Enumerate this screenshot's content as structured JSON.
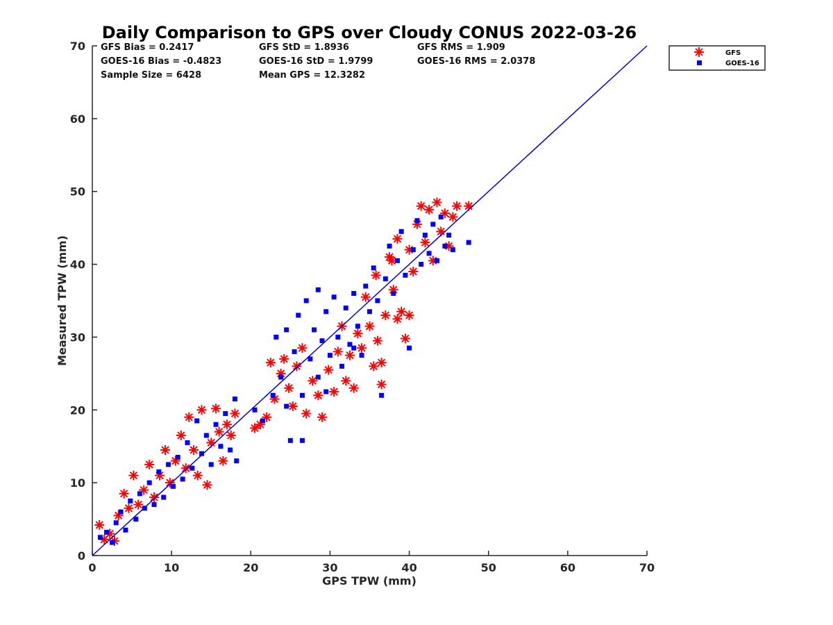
{
  "chart_data": {
    "type": "scatter",
    "title": "Daily Comparison to GPS over Cloudy CONUS 2022-03-26",
    "xlabel": "GPS TPW (mm)",
    "ylabel": "Measured TPW (mm)",
    "xlim": [
      0,
      70
    ],
    "ylim": [
      0,
      70
    ],
    "xticks": [
      "0",
      "10",
      "20",
      "30",
      "40",
      "50",
      "60",
      "70"
    ],
    "yticks": [
      "0",
      "10",
      "20",
      "30",
      "40",
      "50",
      "60",
      "70"
    ],
    "grid": false,
    "legend_position": "outside top-right",
    "stats": [
      [
        "GFS Bias = 0.2417",
        "GFS StD = 1.8936",
        "GFS RMS = 1.909"
      ],
      [
        "GOES-16 Bias = -0.4823",
        "GOES-16 StD = 1.9799",
        "GOES-16 RMS = 2.0378"
      ],
      [
        "Sample Size = 6428",
        "Mean GPS = 12.3282",
        ""
      ]
    ],
    "reference_line": {
      "x": [
        0,
        70
      ],
      "y": [
        0,
        70
      ],
      "color": "#0000dd"
    },
    "series": [
      {
        "name": "GFS",
        "marker": "asterisk",
        "color": "#ff0000",
        "points": [
          [
            0.9,
            4.2
          ],
          [
            1.5,
            2.2
          ],
          [
            2.2,
            3.0
          ],
          [
            2.8,
            2.0
          ],
          [
            3.3,
            5.5
          ],
          [
            4.0,
            8.5
          ],
          [
            4.6,
            6.5
          ],
          [
            5.2,
            11.0
          ],
          [
            5.8,
            7.0
          ],
          [
            6.5,
            9.0
          ],
          [
            7.2,
            12.5
          ],
          [
            7.8,
            8.0
          ],
          [
            8.5,
            11.0
          ],
          [
            9.2,
            14.5
          ],
          [
            9.8,
            10.0
          ],
          [
            10.5,
            13.0
          ],
          [
            11.2,
            16.5
          ],
          [
            11.8,
            12.0
          ],
          [
            12.2,
            19.0
          ],
          [
            12.8,
            14.5
          ],
          [
            13.3,
            11.0
          ],
          [
            13.8,
            20.0
          ],
          [
            14.5,
            9.7
          ],
          [
            15.0,
            15.5
          ],
          [
            15.6,
            20.2
          ],
          [
            16.0,
            17.0
          ],
          [
            16.5,
            13.0
          ],
          [
            17.0,
            18.0
          ],
          [
            17.5,
            16.5
          ],
          [
            18.0,
            19.5
          ],
          [
            20.5,
            17.5
          ],
          [
            21.2,
            18.0
          ],
          [
            22.0,
            19.0
          ],
          [
            22.5,
            26.5
          ],
          [
            23.0,
            21.5
          ],
          [
            23.8,
            25.0
          ],
          [
            24.2,
            27.0
          ],
          [
            24.8,
            23.0
          ],
          [
            25.3,
            20.5
          ],
          [
            25.8,
            26.0
          ],
          [
            26.5,
            28.5
          ],
          [
            27.0,
            19.5
          ],
          [
            27.8,
            24.0
          ],
          [
            28.5,
            22.0
          ],
          [
            29.0,
            19.0
          ],
          [
            29.8,
            25.5
          ],
          [
            30.5,
            22.5
          ],
          [
            31.0,
            28.0
          ],
          [
            31.5,
            31.5
          ],
          [
            32.0,
            24.0
          ],
          [
            32.5,
            27.5
          ],
          [
            33.0,
            23.0
          ],
          [
            33.5,
            30.5
          ],
          [
            34.0,
            28.5
          ],
          [
            34.5,
            35.5
          ],
          [
            35.0,
            31.5
          ],
          [
            35.5,
            26.0
          ],
          [
            36.0,
            29.5
          ],
          [
            36.5,
            23.5
          ],
          [
            37.0,
            33.0
          ],
          [
            37.5,
            41.0
          ],
          [
            38.0,
            36.5
          ],
          [
            38.5,
            43.5
          ],
          [
            39.0,
            33.5
          ],
          [
            39.5,
            29.8
          ],
          [
            40.0,
            42.0
          ],
          [
            40.5,
            39.0
          ],
          [
            41.0,
            45.5
          ],
          [
            41.5,
            48.0
          ],
          [
            42.0,
            43.0
          ],
          [
            42.5,
            47.5
          ],
          [
            43.0,
            40.5
          ],
          [
            43.5,
            48.5
          ],
          [
            44.0,
            44.5
          ],
          [
            44.5,
            47.0
          ],
          [
            45.0,
            42.5
          ],
          [
            45.5,
            46.5
          ],
          [
            46.0,
            48.0
          ],
          [
            47.5,
            48.0
          ],
          [
            36.5,
            26.5
          ],
          [
            38.5,
            32.5
          ],
          [
            40.0,
            33.0
          ],
          [
            35.8,
            38.5
          ],
          [
            37.8,
            40.5
          ]
        ]
      },
      {
        "name": "GOES-16",
        "marker": "square",
        "color": "#0000ff",
        "points": [
          [
            1.0,
            2.5
          ],
          [
            1.8,
            3.2
          ],
          [
            2.5,
            1.8
          ],
          [
            3.0,
            4.5
          ],
          [
            3.6,
            6.0
          ],
          [
            4.2,
            3.5
          ],
          [
            4.8,
            7.5
          ],
          [
            5.5,
            5.0
          ],
          [
            6.0,
            8.5
          ],
          [
            6.6,
            6.5
          ],
          [
            7.2,
            10.0
          ],
          [
            7.8,
            7.0
          ],
          [
            8.4,
            11.5
          ],
          [
            9.0,
            8.0
          ],
          [
            9.6,
            12.5
          ],
          [
            10.2,
            9.5
          ],
          [
            10.8,
            13.5
          ],
          [
            11.4,
            10.5
          ],
          [
            12.0,
            15.5
          ],
          [
            12.6,
            12.0
          ],
          [
            13.2,
            18.5
          ],
          [
            13.8,
            14.0
          ],
          [
            14.4,
            16.5
          ],
          [
            15.0,
            12.5
          ],
          [
            15.6,
            18.0
          ],
          [
            16.2,
            15.0
          ],
          [
            16.8,
            19.5
          ],
          [
            17.4,
            14.5
          ],
          [
            18.0,
            21.5
          ],
          [
            18.2,
            13.0
          ],
          [
            20.5,
            20.0
          ],
          [
            21.5,
            18.5
          ],
          [
            22.8,
            22.0
          ],
          [
            23.2,
            30.0
          ],
          [
            23.8,
            24.5
          ],
          [
            24.5,
            31.0
          ],
          [
            25.0,
            15.8
          ],
          [
            25.5,
            28.0
          ],
          [
            26.0,
            33.0
          ],
          [
            26.5,
            22.0
          ],
          [
            27.0,
            35.0
          ],
          [
            27.5,
            27.0
          ],
          [
            28.0,
            31.0
          ],
          [
            28.5,
            24.5
          ],
          [
            29.0,
            29.5
          ],
          [
            29.5,
            33.5
          ],
          [
            30.0,
            27.5
          ],
          [
            30.5,
            35.5
          ],
          [
            31.0,
            30.0
          ],
          [
            31.5,
            26.0
          ],
          [
            32.0,
            34.0
          ],
          [
            32.5,
            29.0
          ],
          [
            33.0,
            36.0
          ],
          [
            33.5,
            31.5
          ],
          [
            34.0,
            27.5
          ],
          [
            34.5,
            37.0
          ],
          [
            35.0,
            33.5
          ],
          [
            35.5,
            39.5
          ],
          [
            36.0,
            35.0
          ],
          [
            36.5,
            22.0
          ],
          [
            37.0,
            38.0
          ],
          [
            37.5,
            42.5
          ],
          [
            38.0,
            36.0
          ],
          [
            38.5,
            40.5
          ],
          [
            39.0,
            44.5
          ],
          [
            39.5,
            38.5
          ],
          [
            40.0,
            28.5
          ],
          [
            40.5,
            42.0
          ],
          [
            41.0,
            46.0
          ],
          [
            41.5,
            40.0
          ],
          [
            42.0,
            44.0
          ],
          [
            42.5,
            41.5
          ],
          [
            43.0,
            45.5
          ],
          [
            43.5,
            40.5
          ],
          [
            44.0,
            46.5
          ],
          [
            44.5,
            42.5
          ],
          [
            45.0,
            44.0
          ],
          [
            45.5,
            42.0
          ],
          [
            47.5,
            43.0
          ],
          [
            26.5,
            15.8
          ],
          [
            24.5,
            20.5
          ],
          [
            28.5,
            36.5
          ],
          [
            33.0,
            28.5
          ],
          [
            29.5,
            22.5
          ]
        ]
      }
    ]
  }
}
